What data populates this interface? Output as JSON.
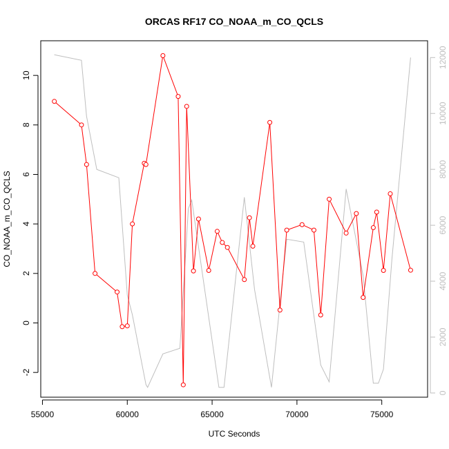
{
  "chart_data": {
    "type": "line",
    "title": "ORCAS RF17 CO_NOAA_m_CO_QCLS",
    "xlabel": "UTC Seconds",
    "ylabel": "CO_NOAA_m_CO_QCLS",
    "xlim": [
      54900,
      77700
    ],
    "ylim": [
      -3,
      11.4
    ],
    "ylim_right": [
      -150,
      12600
    ],
    "x_ticks": [
      55000,
      60000,
      65000,
      70000,
      75000
    ],
    "y_ticks": [
      -2,
      0,
      2,
      4,
      6,
      8,
      10
    ],
    "y_ticks_right": [
      0,
      2000,
      4000,
      6000,
      8000,
      10000,
      12000
    ],
    "grid": false,
    "legend": "none",
    "series": [
      {
        "role": "primary",
        "color": "#ff0000",
        "style": "line-with-open-circles",
        "axis": "left",
        "x": [
          55700,
          57300,
          57600,
          58100,
          59400,
          59700,
          60000,
          60300,
          61000,
          61100,
          62100,
          63000,
          63300,
          63500,
          63900,
          64200,
          64800,
          65300,
          65600,
          65900,
          66900,
          67200,
          67400,
          68400,
          69000,
          69400,
          70300,
          71000,
          71400,
          71900,
          72900,
          73500,
          73900,
          74500,
          74700,
          75100,
          75500,
          76700
        ],
        "y": [
          8.95,
          8.0,
          6.4,
          2.0,
          1.25,
          -0.15,
          -0.12,
          4.0,
          6.45,
          6.4,
          10.8,
          9.15,
          -2.5,
          8.75,
          2.1,
          4.2,
          2.12,
          3.7,
          3.25,
          3.05,
          1.75,
          4.25,
          3.1,
          8.1,
          0.52,
          3.75,
          3.97,
          3.75,
          0.32,
          5.0,
          3.63,
          4.42,
          1.03,
          3.85,
          4.48,
          2.12,
          5.22,
          2.13
        ]
      },
      {
        "role": "secondary",
        "color": "#bebebe",
        "style": "line",
        "axis": "right",
        "x": [
          55700,
          57300,
          57600,
          58200,
          59500,
          60000,
          60300,
          61100,
          61200,
          62100,
          63100,
          63600,
          63800,
          64800,
          65400,
          65700,
          66900,
          67500,
          68500,
          69100,
          69400,
          70400,
          71400,
          71900,
          72900,
          73900,
          74500,
          74800,
          75100,
          75600,
          76700
        ],
        "y": [
          12100,
          11900,
          9900,
          8000,
          7700,
          3500,
          2800,
          300,
          200,
          1400,
          1600,
          6600,
          6900,
          2700,
          200,
          200,
          7000,
          3700,
          200,
          3800,
          5500,
          5400,
          1000,
          400,
          7300,
          4200,
          350,
          350,
          850,
          4800,
          12000
        ]
      }
    ]
  }
}
